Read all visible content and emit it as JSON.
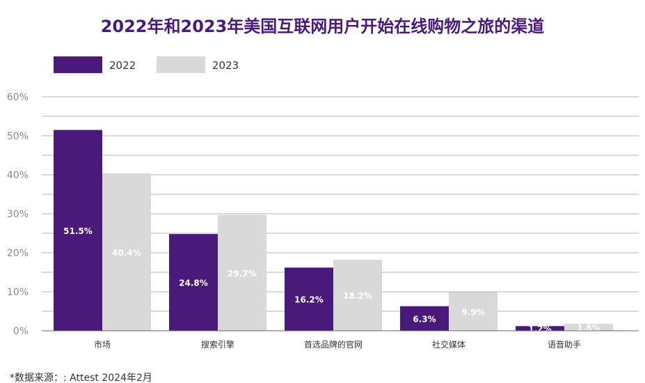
{
  "chart_data": {
    "type": "bar",
    "title": "2022年和2023年美国互联网用户开始在线购物之旅的渠道",
    "categories": [
      "市场",
      "搜索引擎",
      "首选品牌的官网",
      "社交媒体",
      "语音助手"
    ],
    "series": [
      {
        "name": "2022",
        "color": "#4a1a7a",
        "values": [
          51.5,
          24.8,
          16.2,
          6.3,
          1.2
        ],
        "labels": [
          "51.5%",
          "24.8%",
          "16.2%",
          "6.3%",
          "1.2%"
        ]
      },
      {
        "name": "2023",
        "color": "#d9d9d9",
        "values": [
          40.4,
          29.7,
          18.2,
          9.9,
          1.8
        ],
        "labels": [
          "40.4%",
          "29.7%",
          "18.2%",
          "9.9%",
          "1.8%"
        ]
      }
    ],
    "ylim": [
      0,
      60
    ],
    "yticks": [
      "0%",
      "10%",
      "20%",
      "30%",
      "40%",
      "50%",
      "60%"
    ],
    "grid": true,
    "legend": "top-left",
    "xlabel": "",
    "ylabel": ""
  },
  "footnote": "*数据来源：: Attest 2024年2月"
}
